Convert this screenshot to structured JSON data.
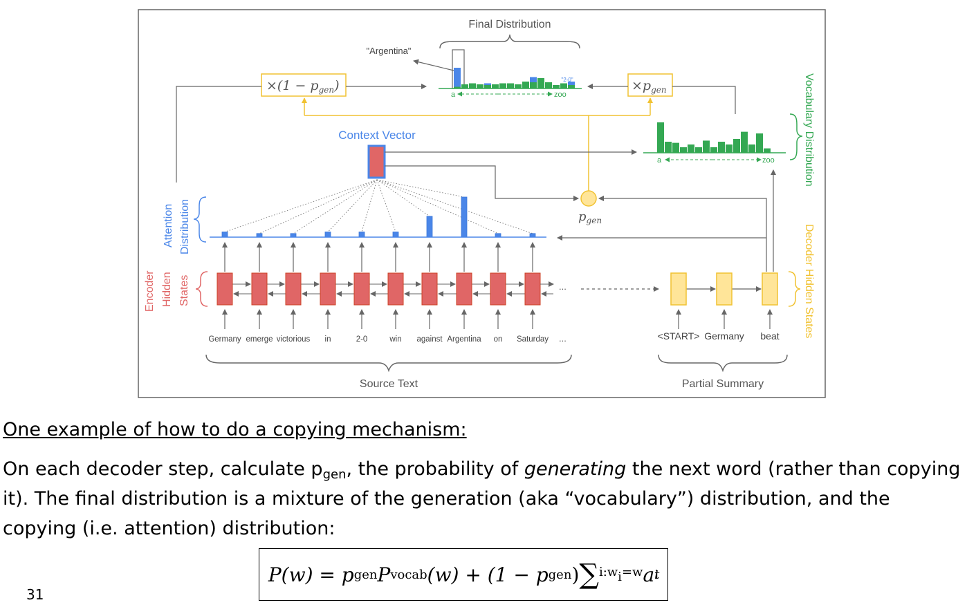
{
  "diagram": {
    "final_distribution_label": "Final Distribution",
    "argentina_label": "\"Argentina\"",
    "label_2_0_small": "\"2-0\"",
    "axis_a": "a",
    "axis_zoo": "zoo",
    "one_minus_pgen": "×(1 − p",
    "times_pgen": "×p",
    "gen_sub": "gen",
    "paren_close": ")",
    "context_vector_label": "Context Vector",
    "pgen_p": "p",
    "vocabulary_distribution_label": "Vocabulary Distribution",
    "attention_distribution_line1": "Attention",
    "attention_distribution_line2": "Distribution",
    "encoder_line1": "Encoder",
    "encoder_line2": "Hidden",
    "encoder_line3": "States",
    "decoder_hidden_states_label": "Decoder Hidden States",
    "source_words": [
      "Germany",
      "emerge",
      "victorious",
      "in",
      "2-0",
      "win",
      "against",
      "Argentina",
      "on",
      "Saturday"
    ],
    "ellipsis": "...",
    "summary_words": [
      "<START>",
      "Germany",
      "beat"
    ],
    "source_text_label": "Source Text",
    "partial_summary_label": "Partial Summary",
    "attention_weights": [
      0.13,
      0.09,
      0.09,
      0.13,
      0.13,
      0.13,
      0.52,
      1.0,
      0.09,
      0.09
    ],
    "final_dist_green": [
      0.05,
      0.12,
      0.15,
      0.12,
      0.1,
      0.12,
      0.15,
      0.15,
      0.12,
      0.2,
      0.18,
      0.3,
      0.18,
      0.1,
      0.15,
      0.1
    ],
    "final_dist_blue": [
      0.55,
      0,
      0,
      0,
      0.05,
      0,
      0,
      0,
      0,
      0,
      0.15,
      0,
      0,
      0,
      0,
      0.1
    ],
    "vocab_dist": [
      0.55,
      0.2,
      0.18,
      0.1,
      0.15,
      0.1,
      0.22,
      0.1,
      0.2,
      0.15,
      0.25,
      0.38,
      0.15,
      0.35,
      0.08
    ],
    "colors": {
      "green": "#34a853",
      "blue": "#4a86e8",
      "red": "#e06666",
      "yellow": "#f1c232",
      "yellow_fill": "#ffe599",
      "gray": "#666666"
    }
  },
  "text": {
    "heading": "One example of how to do a copying mechanism:",
    "para_pre": "On each decoder step, calculate p",
    "para_sub": "gen",
    "para_mid": ", the probability of ",
    "para_italic": "generating",
    "para_post": " the next word (rather than copying it). The final distribution is a mixture of the generation (aka “vocabulary”) distribution, and the copying (i.e. attention) distribution:",
    "slide_number": "31"
  },
  "formula": {
    "lhs": "P(w) = p",
    "gen1": "gen",
    "p_vocab": "P",
    "vocab_sub": "vocab",
    "mid": "(w) + (1 − p",
    "gen2": "gen",
    "close": ")",
    "sigma": "∑",
    "sum_sub": "i:w",
    "sum_sub_i": "i",
    "sum_sub_eq": "=w",
    "a": "a",
    "a_sup": "t",
    "a_sub": "i"
  }
}
